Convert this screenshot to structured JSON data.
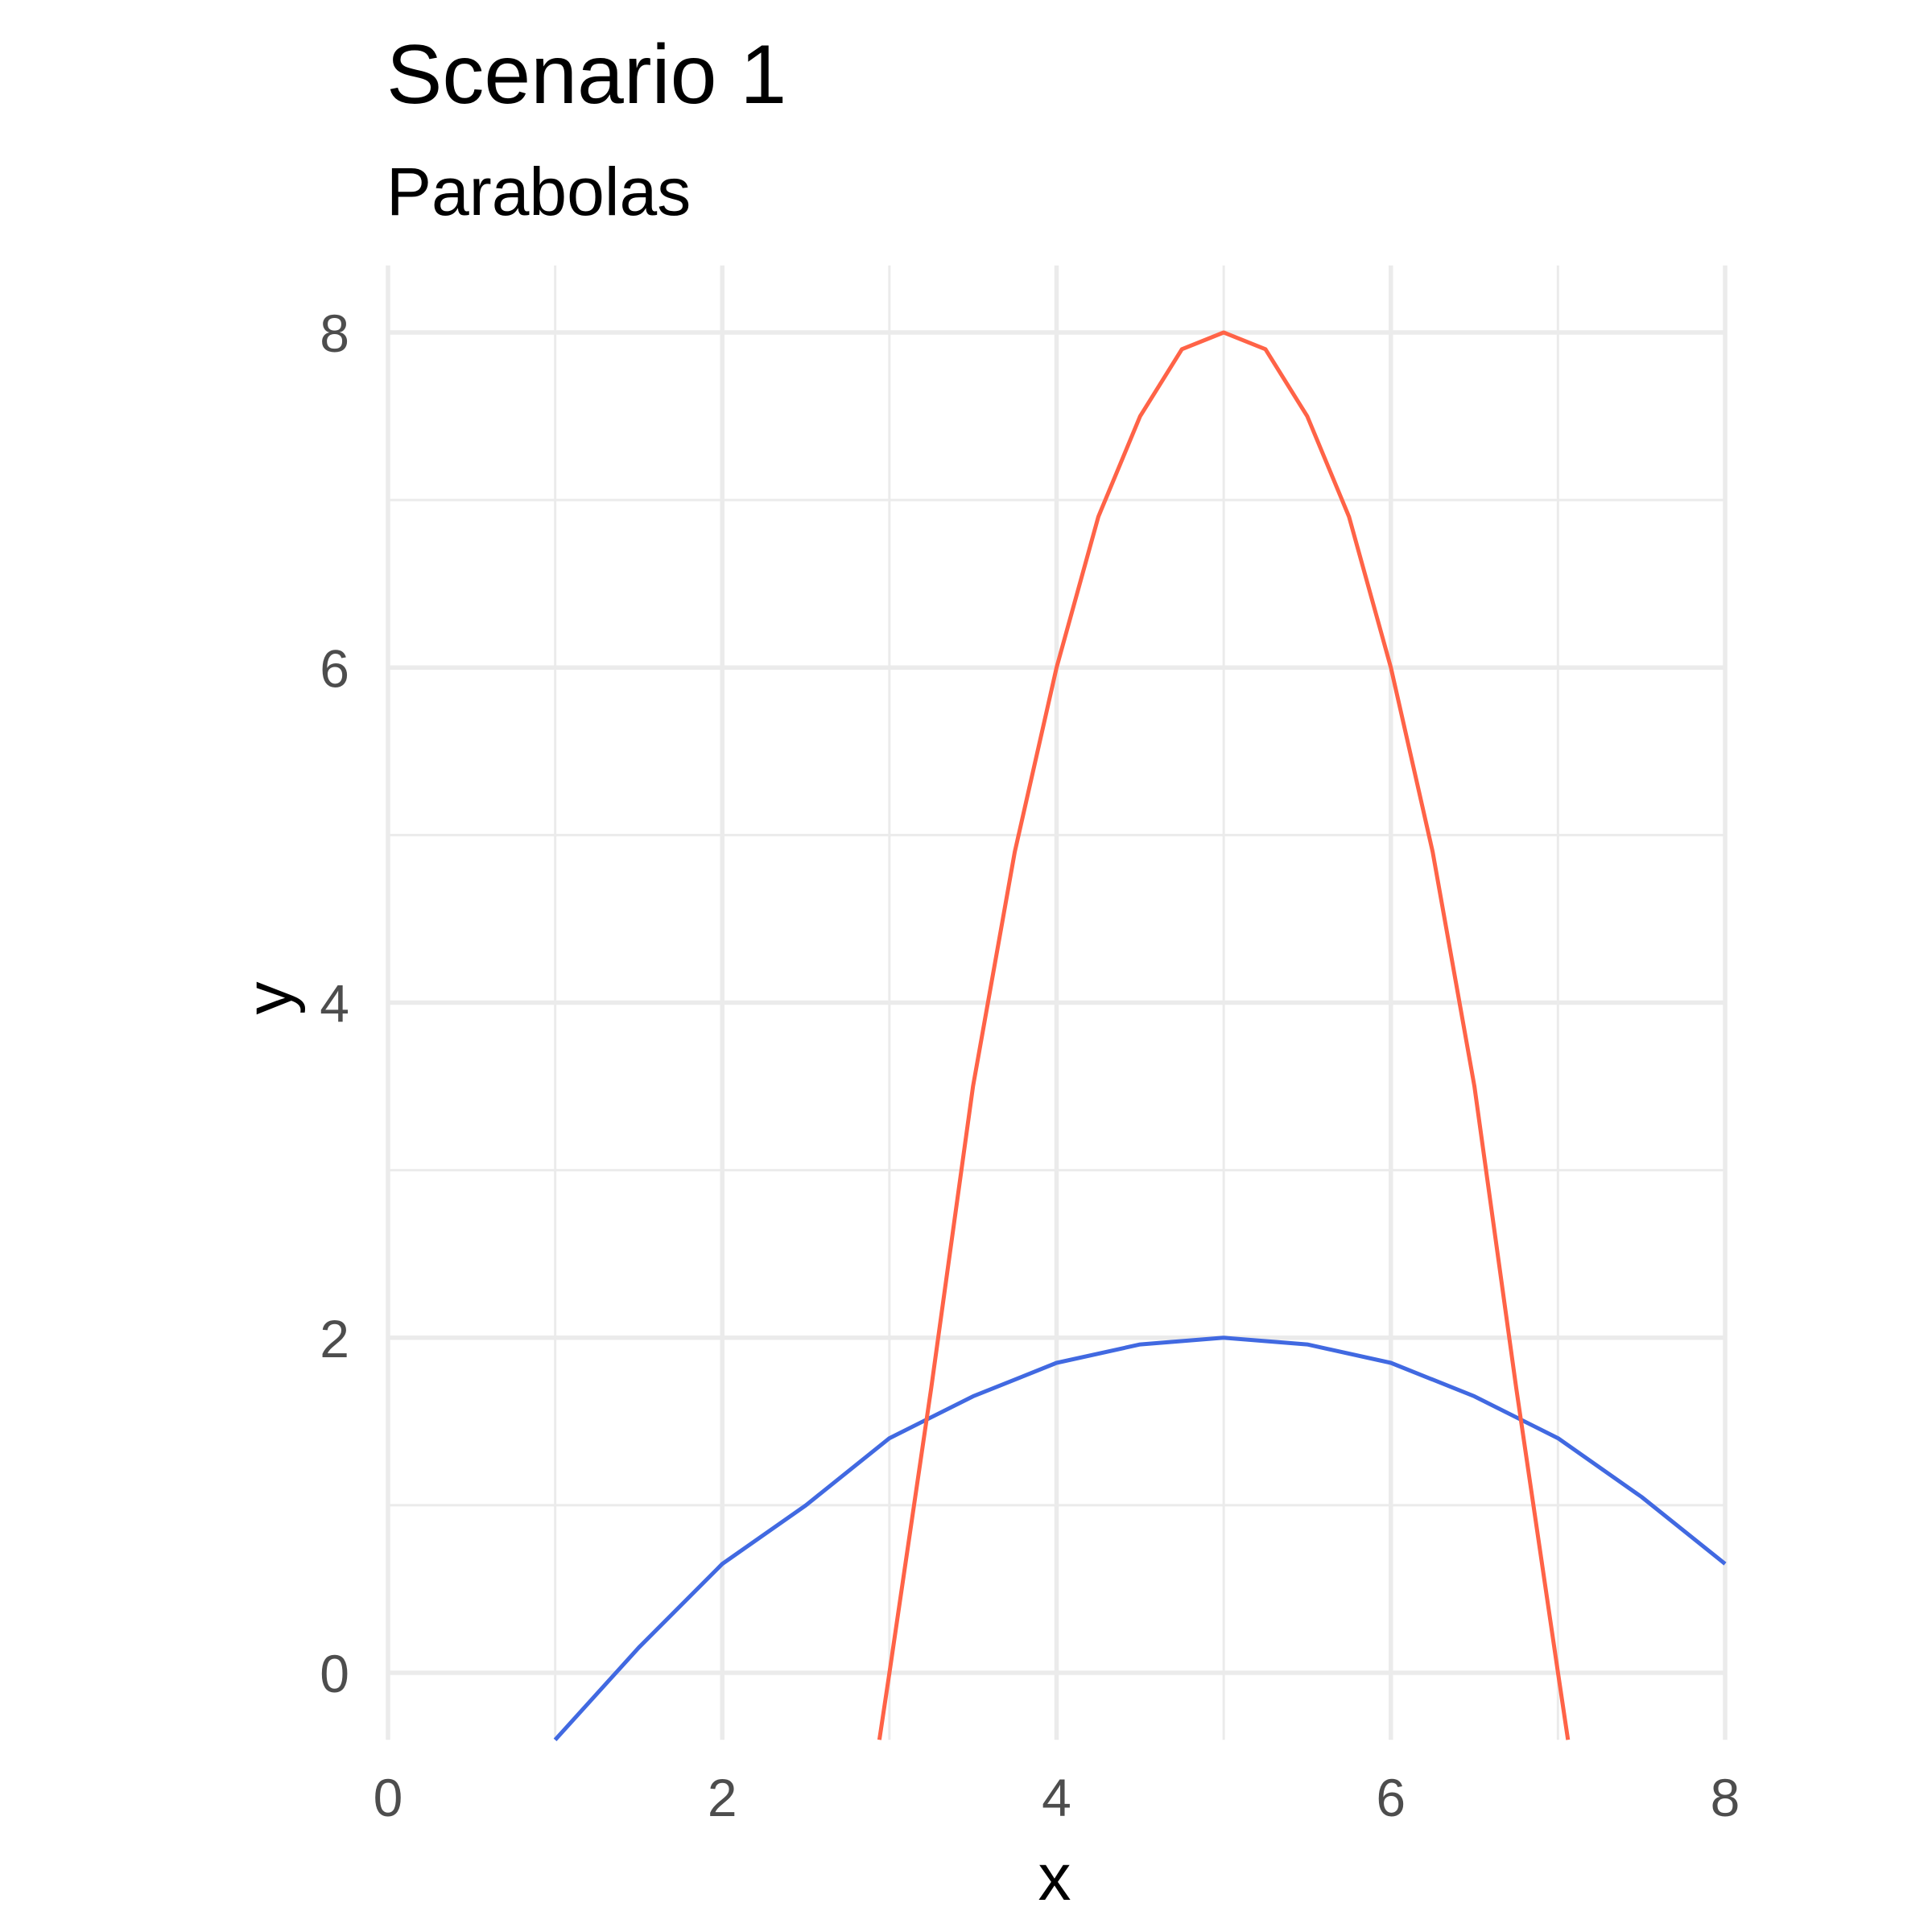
{
  "chart_data": {
    "type": "line",
    "title": "Scenario 1",
    "subtitle": "Parabolas",
    "xlabel": "x",
    "ylabel": "y",
    "xlim": [
      0,
      8
    ],
    "ylim": [
      -0.4,
      8.4
    ],
    "x_ticks": [
      0,
      2,
      4,
      6,
      8
    ],
    "y_ticks": [
      0,
      2,
      4,
      6,
      8
    ],
    "grid": true,
    "legend": "none",
    "series": [
      {
        "color": "#4169E1",
        "x": [
          1,
          1.5,
          2,
          2.5,
          3,
          3.5,
          4,
          4.5,
          5,
          5.5,
          6,
          6.5,
          7,
          7.5,
          8
        ],
        "y": [
          -0.4,
          0.15,
          0.65,
          1.0,
          1.4,
          1.65,
          1.85,
          1.96,
          2.0,
          1.96,
          1.85,
          1.65,
          1.4,
          1.05,
          0.65
        ]
      },
      {
        "color": "#FF6347",
        "x": [
          2.94,
          3.0,
          3.25,
          3.5,
          3.75,
          4.0,
          4.25,
          4.5,
          4.75,
          5.0,
          5.25,
          5.5,
          5.75,
          6.0,
          6.25,
          6.5,
          6.75,
          7.0,
          7.06
        ],
        "y": [
          -0.4,
          0.0,
          1.7,
          3.5,
          4.9,
          6.0,
          6.9,
          7.5,
          7.9,
          8.0,
          7.9,
          7.5,
          6.9,
          6.0,
          4.9,
          3.5,
          1.7,
          0.0,
          -0.4
        ]
      }
    ]
  }
}
